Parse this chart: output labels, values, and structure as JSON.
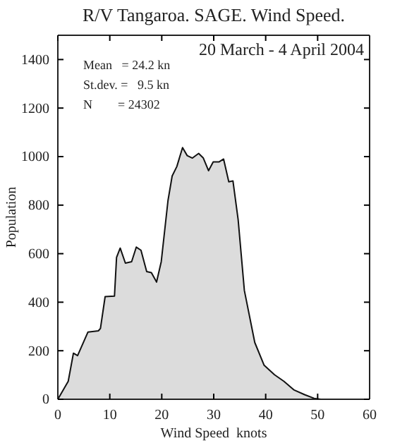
{
  "chart_data": {
    "type": "area",
    "title": "R/V Tangaroa. SAGE. Wind Speed.",
    "xlabel": "Wind Speed  knots",
    "ylabel": "Population",
    "annotations": [
      "20 March - 4 April 2004",
      "Mean   = 24.2 kn",
      "St.dev. =   9.5 kn",
      "N        = 24302"
    ],
    "x": [
      0,
      2,
      3,
      3.8,
      5.8,
      7.8,
      8.2,
      9.1,
      10.9,
      11.3,
      12,
      13,
      14.2,
      15.1,
      16,
      17.1,
      18,
      19,
      19.9,
      21.2,
      22,
      22.9,
      24,
      24.9,
      25.9,
      27.1,
      28,
      29,
      29.9,
      31,
      31.9,
      32.9,
      33.7,
      34.7,
      35.9,
      37.9,
      39.7,
      41.7,
      43.5,
      45.4,
      47.5,
      49.3,
      50.6,
      60
    ],
    "series": [
      {
        "color": "#dcdcdc",
        "values": [
          0,
          74,
          190,
          180,
          277,
          282,
          292,
          423,
          425,
          585,
          623,
          561,
          567,
          627,
          614,
          526,
          522,
          483,
          567,
          819,
          920,
          959,
          1037,
          1004,
          994,
          1013,
          994,
          942,
          978,
          978,
          990,
          896,
          900,
          740,
          448,
          234,
          140,
          101,
          74,
          39,
          19,
          4,
          0,
          0
        ]
      }
    ],
    "xlim": [
      0,
      60
    ],
    "xticks": [
      0,
      10,
      20,
      30,
      40,
      50,
      60
    ],
    "ylim": [
      0,
      1500
    ],
    "yticks": [
      0,
      200,
      400,
      600,
      800,
      1000,
      1200,
      1400
    ]
  }
}
